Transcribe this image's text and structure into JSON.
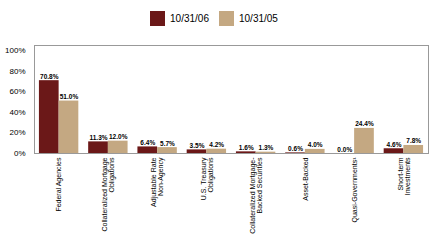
{
  "chart_data": {
    "type": "bar",
    "categories": [
      "Federal Agencies",
      "Collateralized Mortgage\nObligations",
      "Adjustable Rate\nNon-Agency",
      "U.S. Treasury\nObligations",
      "Collateralized Mortgage-\nBacked Securities",
      "Asset-Backed",
      "Quasi-Governments¹",
      "Short-term\nInvestments"
    ],
    "series": [
      {
        "name": "10/31/06",
        "color": "#6b1818",
        "values": [
          70.8,
          11.3,
          6.4,
          3.5,
          1.6,
          0.6,
          0.0,
          4.6
        ],
        "value_labels": [
          "70.8%",
          "11.3%",
          "6.4%",
          "3.5%",
          "1.6%",
          "0.6%",
          "0.0%",
          "4.6%"
        ]
      },
      {
        "name": "10/31/05",
        "color": "#c4a882",
        "values": [
          51.0,
          12.0,
          5.7,
          4.2,
          1.3,
          4.0,
          24.4,
          7.8
        ],
        "value_labels": [
          "51.0%",
          "12.0%",
          "5.7%",
          "4.2%",
          "1.3%",
          "4.0%",
          "24.4%",
          "7.8%"
        ]
      }
    ],
    "ylim": [
      0,
      105
    ],
    "yticks": [
      {
        "value": 0,
        "label": "0%"
      },
      {
        "value": 20,
        "label": "20%"
      },
      {
        "value": 40,
        "label": "40%"
      },
      {
        "value": 60,
        "label": "60%"
      },
      {
        "value": 80,
        "label": "80%"
      },
      {
        "value": 100,
        "label": "100%"
      }
    ],
    "grid": false,
    "legend": "top",
    "data_labels": true
  }
}
